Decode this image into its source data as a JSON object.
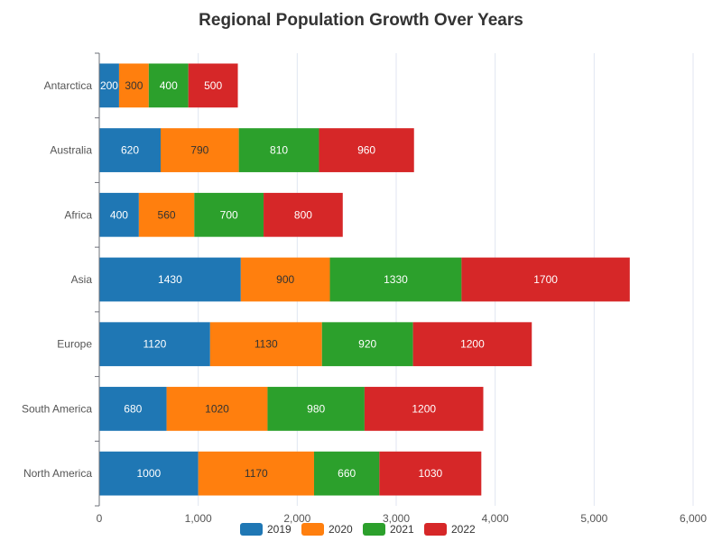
{
  "chart_data": {
    "type": "bar",
    "orientation": "horizontal",
    "stacked": true,
    "title": "Regional Population Growth Over Years",
    "xlabel": "",
    "ylabel": "",
    "xlim": [
      0,
      6000
    ],
    "x_ticks": [
      0,
      1000,
      2000,
      3000,
      4000,
      5000,
      6000
    ],
    "x_tick_labels": [
      "0",
      "1,000",
      "2,000",
      "3,000",
      "4,000",
      "5,000",
      "6,000"
    ],
    "categories": [
      "Antarctica",
      "Australia",
      "Africa",
      "Asia",
      "Europe",
      "South America",
      "North America"
    ],
    "series": [
      {
        "name": "2019",
        "color": "#1f77b4",
        "label_color": "#ffffff",
        "values": [
          200,
          620,
          400,
          1430,
          1120,
          680,
          1000
        ]
      },
      {
        "name": "2020",
        "color": "#ff7f0e",
        "label_color": "#333333",
        "values": [
          300,
          790,
          560,
          900,
          1130,
          1020,
          1170
        ]
      },
      {
        "name": "2021",
        "color": "#2ca02c",
        "label_color": "#ffffff",
        "values": [
          400,
          810,
          700,
          1330,
          920,
          980,
          660
        ]
      },
      {
        "name": "2022",
        "color": "#d62728",
        "label_color": "#ffffff",
        "values": [
          500,
          960,
          800,
          1700,
          1200,
          1200,
          1030
        ]
      }
    ],
    "grid": true,
    "legend_position": "bottom"
  }
}
